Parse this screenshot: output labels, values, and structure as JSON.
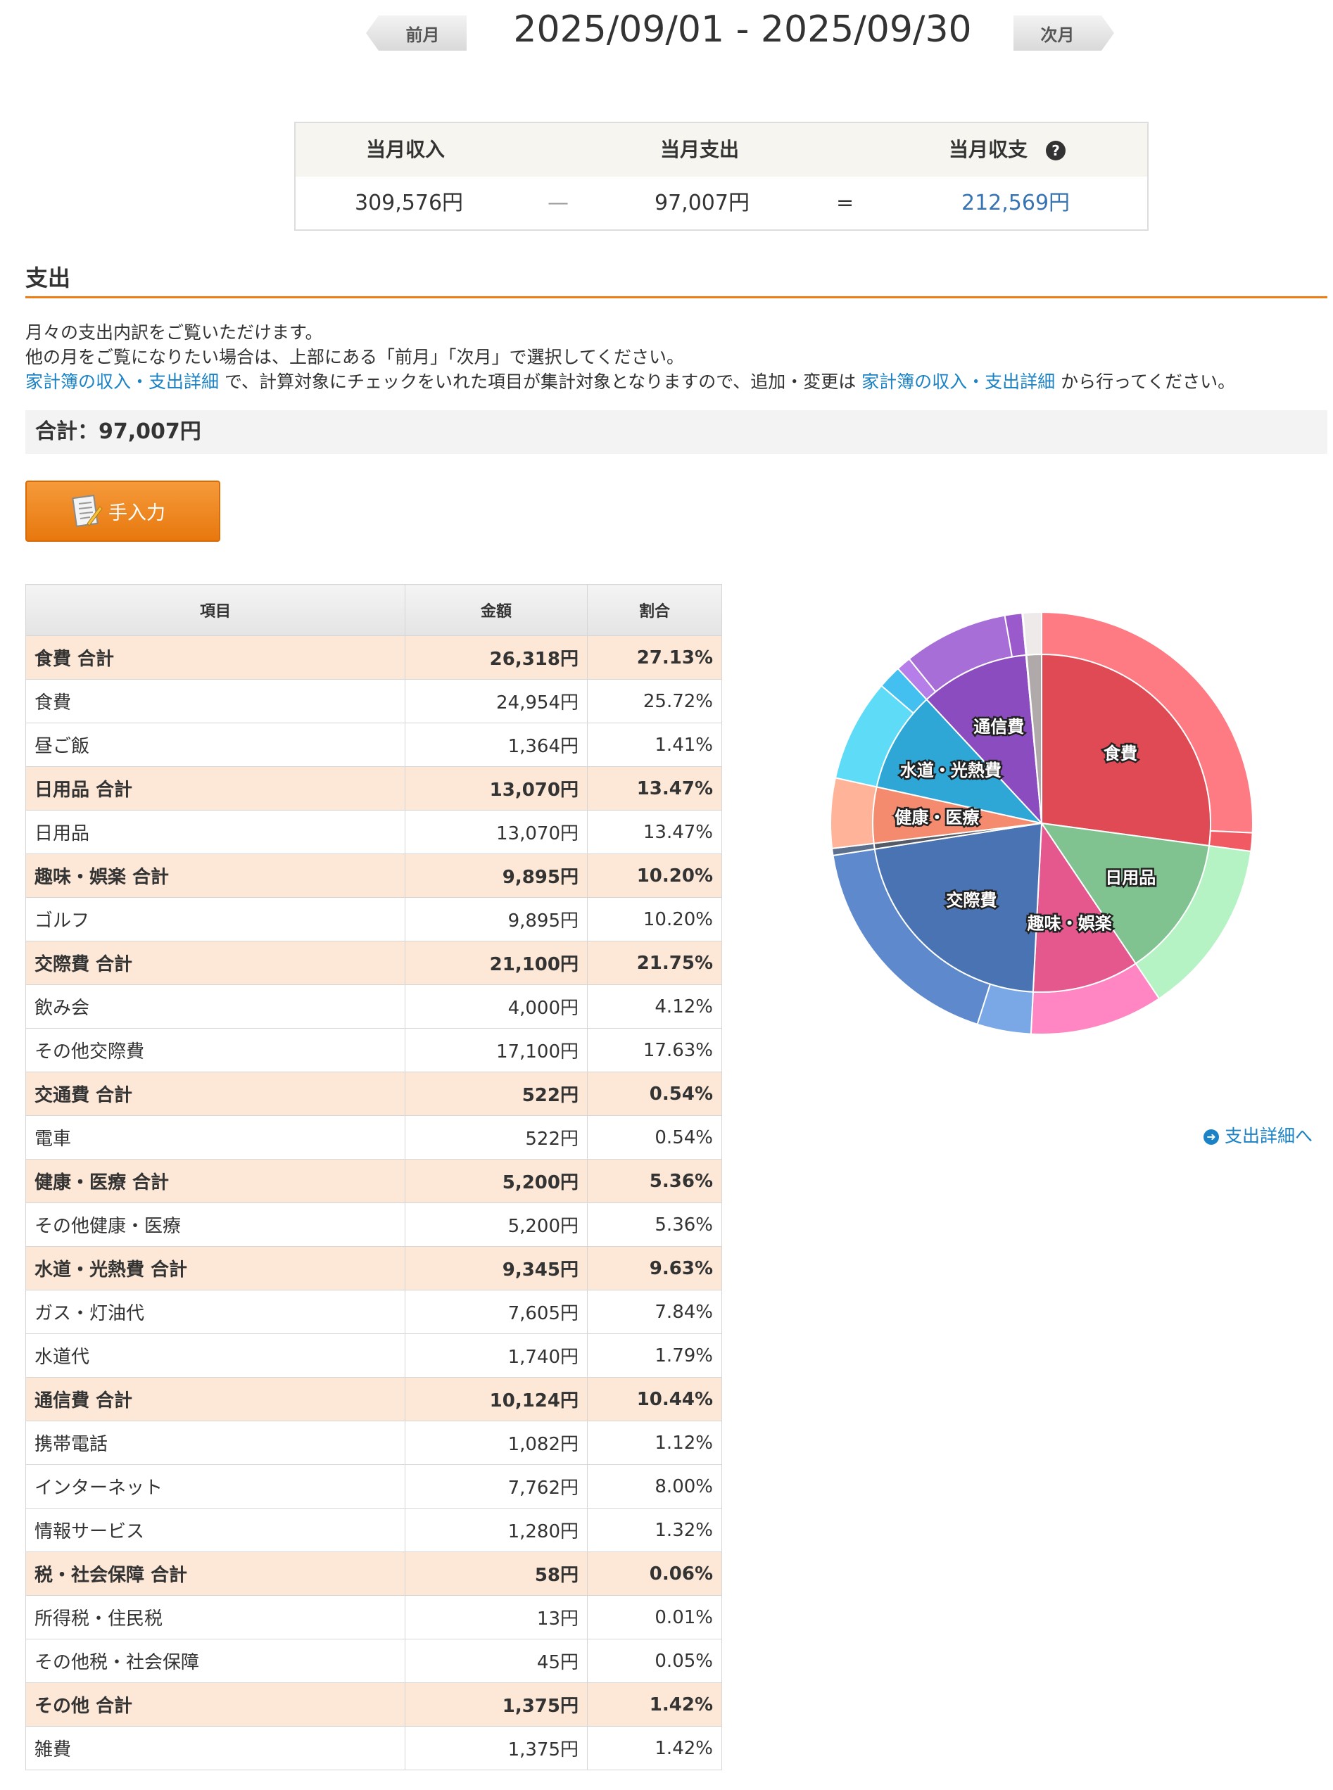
{
  "header": {
    "prev_label": "前月",
    "next_label": "次月",
    "date_range": "2025/09/01 - 2025/09/30"
  },
  "summary": {
    "income_label": "当月収入",
    "expense_label": "当月支出",
    "balance_label": "当月収支",
    "help_glyph": "?",
    "income": "309,576円",
    "minus_sign": "—",
    "expense": "97,007円",
    "equals_sign": "=",
    "balance": "212,569円"
  },
  "section": {
    "title": "支出",
    "desc_line1": "月々の支出内訳をご覧いただけます。",
    "desc_line2": "他の月をご覧になりたい場合は、上部にある「前月」「次月」で選択してください。",
    "desc_link1": "家計簿の収入・支出詳細",
    "desc_mid": " で、計算対象にチェックをいれた項目が集計対象となりますので、追加・変更は ",
    "desc_link2": "家計簿の収入・支出詳細",
    "desc_tail": " から行ってください。",
    "total": "合計：97,007円",
    "manual_button": "手入力",
    "detail_link": "支出詳細へ"
  },
  "table": {
    "headers": [
      "項目",
      "金額",
      "割合"
    ],
    "rows": [
      {
        "name": "食費 合計",
        "amount": "26,318円",
        "pct": "27.13%",
        "group": true
      },
      {
        "name": "食費",
        "amount": "24,954円",
        "pct": "25.72%",
        "group": false
      },
      {
        "name": "昼ご飯",
        "amount": "1,364円",
        "pct": "1.41%",
        "group": false
      },
      {
        "name": "日用品 合計",
        "amount": "13,070円",
        "pct": "13.47%",
        "group": true
      },
      {
        "name": "日用品",
        "amount": "13,070円",
        "pct": "13.47%",
        "group": false
      },
      {
        "name": "趣味・娯楽 合計",
        "amount": "9,895円",
        "pct": "10.20%",
        "group": true
      },
      {
        "name": "ゴルフ",
        "amount": "9,895円",
        "pct": "10.20%",
        "group": false
      },
      {
        "name": "交際費 合計",
        "amount": "21,100円",
        "pct": "21.75%",
        "group": true
      },
      {
        "name": "飲み会",
        "amount": "4,000円",
        "pct": "4.12%",
        "group": false
      },
      {
        "name": "その他交際費",
        "amount": "17,100円",
        "pct": "17.63%",
        "group": false
      },
      {
        "name": "交通費 合計",
        "amount": "522円",
        "pct": "0.54%",
        "group": true
      },
      {
        "name": "電車",
        "amount": "522円",
        "pct": "0.54%",
        "group": false
      },
      {
        "name": "健康・医療 合計",
        "amount": "5,200円",
        "pct": "5.36%",
        "group": true
      },
      {
        "name": "その他健康・医療",
        "amount": "5,200円",
        "pct": "5.36%",
        "group": false
      },
      {
        "name": "水道・光熱費 合計",
        "amount": "9,345円",
        "pct": "9.63%",
        "group": true
      },
      {
        "name": "ガス・灯油代",
        "amount": "7,605円",
        "pct": "7.84%",
        "group": false
      },
      {
        "name": "水道代",
        "amount": "1,740円",
        "pct": "1.79%",
        "group": false
      },
      {
        "name": "通信費 合計",
        "amount": "10,124円",
        "pct": "10.44%",
        "group": true
      },
      {
        "name": "携帯電話",
        "amount": "1,082円",
        "pct": "1.12%",
        "group": false
      },
      {
        "name": "インターネット",
        "amount": "7,762円",
        "pct": "8.00%",
        "group": false
      },
      {
        "name": "情報サービス",
        "amount": "1,280円",
        "pct": "1.32%",
        "group": false
      },
      {
        "name": "税・社会保障 合計",
        "amount": "58円",
        "pct": "0.06%",
        "group": true
      },
      {
        "name": "所得税・住民税",
        "amount": "13円",
        "pct": "0.01%",
        "group": false
      },
      {
        "name": "その他税・社会保障",
        "amount": "45円",
        "pct": "0.05%",
        "group": false
      },
      {
        "name": "その他 合計",
        "amount": "1,375円",
        "pct": "1.42%",
        "group": true
      },
      {
        "name": "雑費",
        "amount": "1,375円",
        "pct": "1.42%",
        "group": false
      }
    ]
  },
  "chart_data": {
    "type": "pie",
    "subtype": "nested-donut",
    "inner": [
      {
        "label": "食費",
        "value": 26318,
        "color": "#e04a55",
        "show_label": true
      },
      {
        "label": "日用品",
        "value": 13070,
        "color": "#80c290",
        "show_label": true
      },
      {
        "label": "趣味・娯楽",
        "value": 9895,
        "color": "#e4588e",
        "show_label": true
      },
      {
        "label": "交際費",
        "value": 21100,
        "color": "#4a73b3",
        "show_label": true
      },
      {
        "label": "交通費",
        "value": 522,
        "color": "#555b66",
        "show_label": false
      },
      {
        "label": "健康・医療",
        "value": 5200,
        "color": "#f58b6e",
        "show_label": true
      },
      {
        "label": "水道・光熱費",
        "value": 9345,
        "color": "#2ea6d6",
        "show_label": true
      },
      {
        "label": "通信費",
        "value": 10124,
        "color": "#8a4cbf",
        "show_label": true
      },
      {
        "label": "税・社会保障",
        "value": 58,
        "color": "#cccccc",
        "show_label": false
      },
      {
        "label": "その他",
        "value": 1375,
        "color": "#b0a9a9",
        "show_label": false
      }
    ],
    "outer": [
      {
        "label": "食費",
        "value": 24954,
        "color": "#ff7b84"
      },
      {
        "label": "昼ご飯",
        "value": 1364,
        "color": "#f25a63"
      },
      {
        "label": "日用品",
        "value": 13070,
        "color": "#b5f2c4"
      },
      {
        "label": "ゴルフ",
        "value": 9895,
        "color": "#ff86c3"
      },
      {
        "label": "飲み会",
        "value": 4000,
        "color": "#7aa7e6"
      },
      {
        "label": "その他交際費",
        "value": 17100,
        "color": "#5e89cc"
      },
      {
        "label": "電車",
        "value": 522,
        "color": "#5c6f8c"
      },
      {
        "label": "その他健康・医療",
        "value": 5200,
        "color": "#ffb499"
      },
      {
        "label": "ガス・灯油代",
        "value": 7605,
        "color": "#5ddbf7"
      },
      {
        "label": "水道代",
        "value": 1740,
        "color": "#43bff0"
      },
      {
        "label": "携帯電話",
        "value": 1082,
        "color": "#b57ee8"
      },
      {
        "label": "インターネット",
        "value": 7762,
        "color": "#a86ed8"
      },
      {
        "label": "情報サービス",
        "value": 1280,
        "color": "#9a5acc"
      },
      {
        "label": "所得税・住民税",
        "value": 13,
        "color": "#dddddd"
      },
      {
        "label": "その他税・社会保障",
        "value": 45,
        "color": "#e6e6e6"
      },
      {
        "label": "雑費",
        "value": 1375,
        "color": "#eeeaea"
      }
    ]
  }
}
